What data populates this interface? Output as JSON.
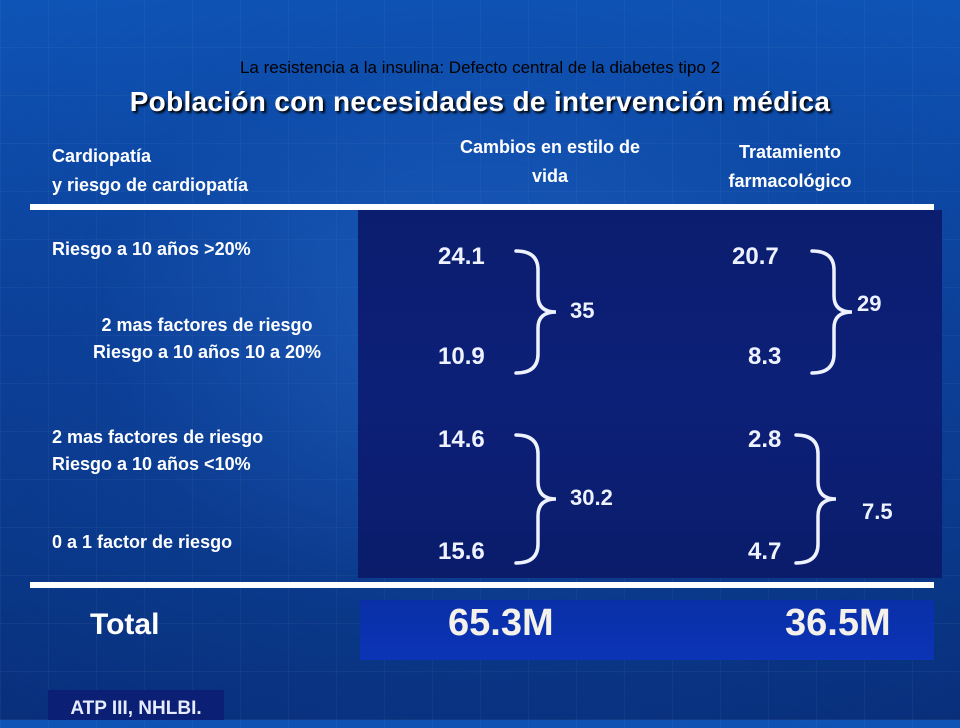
{
  "header": {
    "subtitle": "La resistencia a la insulina: Defecto central de la diabetes tipo 2",
    "title": "Población con necesidades de intervención médica"
  },
  "columns": {
    "category_line1": "Cardiopatía",
    "category_line2": "y riesgo de cardiopatía",
    "lifestyle_line1": "Cambios en estilo de",
    "lifestyle_line2": "vida",
    "drug_line1": "Tratamiento",
    "drug_line2": "farmacológico"
  },
  "rows": [
    {
      "label_line1": "Riesgo a 10 años >20%",
      "label_line2": "",
      "lifestyle": "24.1",
      "drug": "20.7"
    },
    {
      "label_line1": "2 mas factores de riesgo",
      "label_line2": "Riesgo a 10 años 10 a 20%",
      "lifestyle": "10.9",
      "drug": "8.3"
    },
    {
      "label_line1": "2 mas factores de riesgo",
      "label_line2": "Riesgo a 10 años <10%",
      "lifestyle": "14.6",
      "drug": "2.8"
    },
    {
      "label_line1": "0 a 1 factor de riesgo",
      "label_line2": "",
      "lifestyle": "15.6",
      "drug": "4.7"
    }
  ],
  "groups": {
    "lifestyle_high": "35",
    "drug_high": "29",
    "lifestyle_low": "30.2",
    "drug_low": "7.5"
  },
  "total": {
    "label": "Total",
    "lifestyle": "65.3M",
    "drug": "36.5M"
  },
  "source": "ATP III, NHLBI."
}
